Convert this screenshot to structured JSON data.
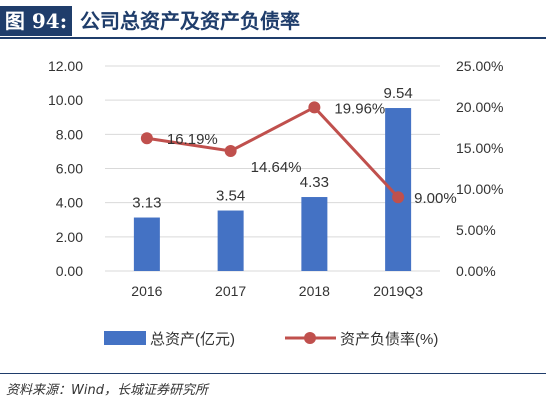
{
  "header": {
    "label": "图 94:",
    "title": "公司总资产及资产负债率"
  },
  "source": "资料来源：Wind，长城证券研究所",
  "colors": {
    "bars": "#4472c4",
    "line": "#c0504d",
    "header": "#1f3d6b"
  },
  "chart_data": {
    "type": "bar+line",
    "categories": [
      "2016",
      "2017",
      "2018",
      "2019Q3"
    ],
    "series": [
      {
        "name": "总资产(亿元)",
        "type": "bar",
        "axis": "left",
        "values": [
          3.13,
          3.54,
          4.33,
          9.54
        ],
        "labels": [
          "3.13",
          "3.54",
          "4.33",
          "9.54"
        ]
      },
      {
        "name": "资产负债率(%)",
        "type": "line",
        "axis": "right",
        "values": [
          16.19,
          14.64,
          19.96,
          9.0
        ],
        "labels": [
          "16.19%",
          "14.64%",
          "19.96%",
          "9.00%"
        ]
      }
    ],
    "y_left": {
      "min": 0,
      "max": 12,
      "step": 2,
      "tick_labels": [
        "0.00",
        "2.00",
        "4.00",
        "6.00",
        "8.00",
        "10.00",
        "12.00"
      ]
    },
    "y_right": {
      "min": 0,
      "max": 25,
      "step": 5,
      "tick_labels": [
        "0.00%",
        "5.00%",
        "10.00%",
        "15.00%",
        "20.00%",
        "25.00%"
      ]
    },
    "grid": true,
    "legend_position": "bottom"
  }
}
